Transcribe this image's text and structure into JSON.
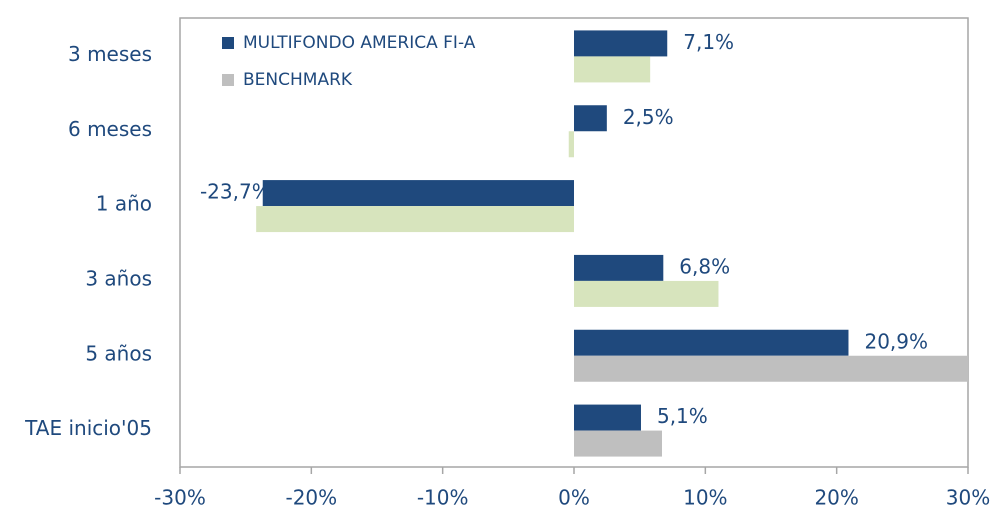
{
  "chart_data": {
    "type": "hbar",
    "categories": [
      "3 meses",
      "6 meses",
      "1 año",
      "3 años",
      "5 años",
      "TAE inicio'05"
    ],
    "series": [
      {
        "name": "MULTIFONDO AMERICA FI-A",
        "color": "#1f497d",
        "values": [
          7.1,
          2.5,
          -23.7,
          6.8,
          20.9,
          5.1
        ],
        "value_labels": [
          "7,1%",
          "2,5%",
          "-23,7%",
          "6,8%",
          "20,9%",
          "5,1%"
        ]
      },
      {
        "name": "BENCHMARK",
        "color": "#bfbfbf",
        "colors": [
          "#d7e4bd",
          "#d7e4bd",
          "#d7e4bd",
          "#d7e4bd",
          "#bfbfbf",
          "#bfbfbf"
        ],
        "values": [
          5.8,
          -0.4,
          -24.2,
          11.0,
          30.0,
          6.7
        ]
      }
    ],
    "xlim": [
      -30,
      30
    ],
    "xticks": [
      {
        "value": -30,
        "label": "-30%"
      },
      {
        "value": -20,
        "label": "-20%"
      },
      {
        "value": -10,
        "label": "-10%"
      },
      {
        "value": 0,
        "label": "0%"
      },
      {
        "value": 10,
        "label": "10%"
      },
      {
        "value": 20,
        "label": "20%"
      },
      {
        "value": 30,
        "label": "30%"
      }
    ],
    "legend": "top-left"
  }
}
